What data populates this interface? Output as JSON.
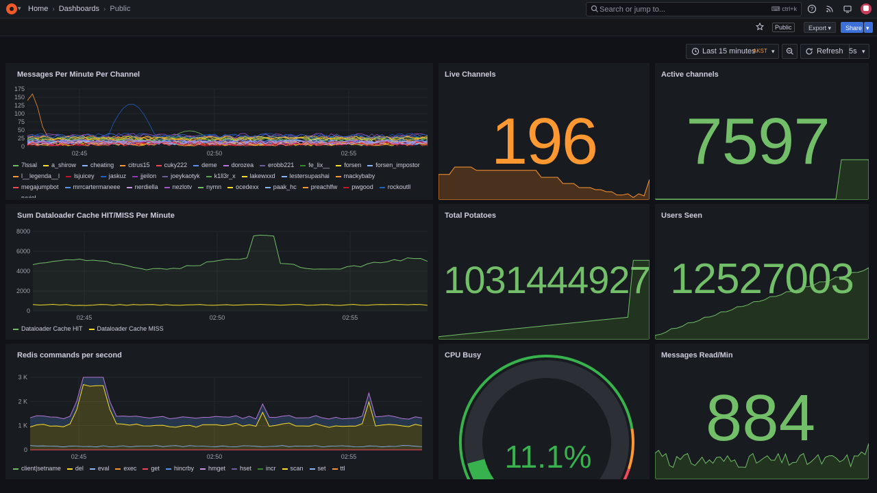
{
  "breadcrumbs": [
    "Home",
    "Dashboards",
    "Public"
  ],
  "search": {
    "placeholder": "Search or jump to...",
    "shortcut": "ctrl+k"
  },
  "toolbar": {
    "public_badge": "Public",
    "export_label": "Export",
    "share_label": "Share"
  },
  "timepicker": {
    "range": "Last 15 minutes",
    "timezone": "AKST",
    "refresh_label": "Refresh",
    "interval": "5s"
  },
  "colors": {
    "accent": "#3d71d9",
    "green": "#73bf69",
    "orange": "#ff9830",
    "red": "#f2495c",
    "yellow": "#fade2a"
  },
  "panels": {
    "messages_per_minute": {
      "title": "Messages Per Minute Per Channel",
      "y_ticks": [
        "175",
        "150",
        "125",
        "100",
        "75",
        "50",
        "25",
        "0"
      ],
      "x_ticks": [
        "02:45",
        "02:50",
        "02:55"
      ],
      "legend": [
        {
          "name": "7lssal",
          "color": "#73bf69"
        },
        {
          "name": "a_shirow",
          "color": "#fade2a"
        },
        {
          "name": "cheating",
          "color": "#8ab8ff"
        },
        {
          "name": "citrus15",
          "color": "#ff9830"
        },
        {
          "name": "cuky222",
          "color": "#f2495c"
        },
        {
          "name": "deme",
          "color": "#5794f2"
        },
        {
          "name": "dorozea",
          "color": "#b877d9"
        },
        {
          "name": "erobb221",
          "color": "#705da0"
        },
        {
          "name": "fe_lix__",
          "color": "#37872d"
        },
        {
          "name": "forsen",
          "color": "#fade2a"
        },
        {
          "name": "forsen_impostor",
          "color": "#8ab8ff"
        },
        {
          "name": "l__legenda__l",
          "color": "#ff9830"
        },
        {
          "name": "lsjuicey",
          "color": "#c4162a"
        },
        {
          "name": "jaskuz",
          "color": "#1f60c4"
        },
        {
          "name": "jjeilon",
          "color": "#8f3bb8"
        },
        {
          "name": "joeykaotyk",
          "color": "#705da0"
        },
        {
          "name": "k1ll3r_x",
          "color": "#56a64b"
        },
        {
          "name": "lakewxxd",
          "color": "#fade2a"
        },
        {
          "name": "lestersupashai",
          "color": "#8ab8ff"
        },
        {
          "name": "mackybaby",
          "color": "#ff9830"
        },
        {
          "name": "megajumpbot",
          "color": "#f2495c"
        },
        {
          "name": "mrrcartermaneee",
          "color": "#5794f2"
        },
        {
          "name": "nerdiella",
          "color": "#ca95e5"
        },
        {
          "name": "nezlotv",
          "color": "#a352cc"
        },
        {
          "name": "nymn",
          "color": "#73bf69"
        },
        {
          "name": "ocedexx",
          "color": "#fade2a"
        },
        {
          "name": "paak_hc",
          "color": "#8ab8ff"
        },
        {
          "name": "preachlfw",
          "color": "#ff9830"
        },
        {
          "name": "pwgood",
          "color": "#c4162a"
        },
        {
          "name": "rockoutll",
          "color": "#1f60c4"
        },
        {
          "name": "ryujel",
          "color": "#b877d9"
        }
      ]
    },
    "live_channels": {
      "title": "Live Channels",
      "value": "196",
      "color": "#ff9830"
    },
    "active_channels": {
      "title": "Active channels",
      "value": "7597",
      "color": "#73bf69"
    },
    "cache": {
      "title": "Sum Dataloader Cache HIT/MISS Per Minute",
      "y_ticks": [
        "8000",
        "6000",
        "4000",
        "2000",
        "0"
      ],
      "x_ticks": [
        "02:45",
        "02:50",
        "02:55"
      ],
      "legend": [
        {
          "name": "Dataloader Cache HIT",
          "color": "#73bf69"
        },
        {
          "name": "Dataloader Cache MISS",
          "color": "#fade2a"
        }
      ]
    },
    "total_potatoes": {
      "title": "Total Potatoes",
      "value": "1031444927",
      "color": "#73bf69"
    },
    "users_seen": {
      "title": "Users Seen",
      "value": "12527003",
      "color": "#73bf69"
    },
    "redis": {
      "title": "Redis commands per second",
      "y_ticks": [
        "3 K",
        "2 K",
        "1 K",
        "0"
      ],
      "x_ticks": [
        "02:45",
        "02:50",
        "02:55"
      ],
      "legend": [
        {
          "name": "client|setname",
          "color": "#73bf69"
        },
        {
          "name": "del",
          "color": "#fade2a"
        },
        {
          "name": "eval",
          "color": "#8ab8ff"
        },
        {
          "name": "exec",
          "color": "#ff9830"
        },
        {
          "name": "get",
          "color": "#f2495c"
        },
        {
          "name": "hincrby",
          "color": "#5794f2"
        },
        {
          "name": "hmget",
          "color": "#ca95e5"
        },
        {
          "name": "hset",
          "color": "#705da0"
        },
        {
          "name": "incr",
          "color": "#37872d"
        },
        {
          "name": "scan",
          "color": "#fade2a"
        },
        {
          "name": "set",
          "color": "#8ab8ff"
        },
        {
          "name": "ttl",
          "color": "#ff9830"
        }
      ]
    },
    "cpu_busy": {
      "title": "CPU Busy",
      "value": "11.1%",
      "percent": 11.1,
      "color": "#37b24d"
    },
    "messages_read": {
      "title": "Messages Read/Min",
      "value": "884",
      "color": "#73bf69"
    }
  }
}
